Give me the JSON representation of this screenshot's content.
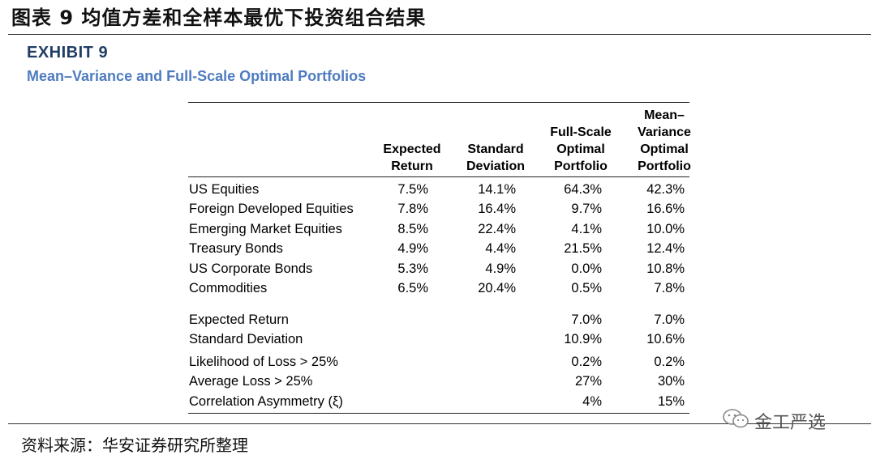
{
  "page": {
    "title": "图表 9 均值方差和全样本最优下投资组合结果",
    "source": "资料来源：华安证券研究所整理",
    "watermark": "金工严选"
  },
  "exhibit": {
    "label": "EXHIBIT 9",
    "subtitle": "Mean–Variance and Full-Scale Optimal Portfolios"
  },
  "table": {
    "headers": [
      "Expected\nReturn",
      "Standard\nDeviation",
      "Full-Scale\nOptimal\nPortfolio",
      "Mean–\nVariance\nOptimal\nPortfolio"
    ],
    "asset_rows": [
      {
        "label": "US Equities",
        "exp_return": "7.5%",
        "std_dev": "14.1%",
        "full_scale": "64.3%",
        "mean_variance": "42.3%"
      },
      {
        "label": "Foreign Developed Equities",
        "exp_return": "7.8%",
        "std_dev": "16.4%",
        "full_scale": "9.7%",
        "mean_variance": "16.6%"
      },
      {
        "label": "Emerging Market Equities",
        "exp_return": "8.5%",
        "std_dev": "22.4%",
        "full_scale": "4.1%",
        "mean_variance": "10.0%"
      },
      {
        "label": "Treasury Bonds",
        "exp_return": "4.9%",
        "std_dev": "4.4%",
        "full_scale": "21.5%",
        "mean_variance": "12.4%"
      },
      {
        "label": "US Corporate Bonds",
        "exp_return": "5.3%",
        "std_dev": "4.9%",
        "full_scale": "0.0%",
        "mean_variance": "10.8%"
      },
      {
        "label": "Commodities",
        "exp_return": "6.5%",
        "std_dev": "20.4%",
        "full_scale": "0.5%",
        "mean_variance": "7.8%"
      }
    ],
    "summary_rows": [
      {
        "label": "Expected Return",
        "full_scale": "7.0%",
        "mean_variance": "7.0%"
      },
      {
        "label": "Standard Deviation",
        "full_scale": "10.9%",
        "mean_variance": "10.6%"
      },
      {
        "label": "Likelihood of Loss > 25%",
        "full_scale": "0.2%",
        "mean_variance": "0.2%"
      },
      {
        "label": "Average Loss > 25%",
        "full_scale": "27%",
        "mean_variance": "30%"
      },
      {
        "label": "Correlation Asymmetry (ξ)",
        "full_scale": "4%",
        "mean_variance": "15%"
      }
    ]
  }
}
